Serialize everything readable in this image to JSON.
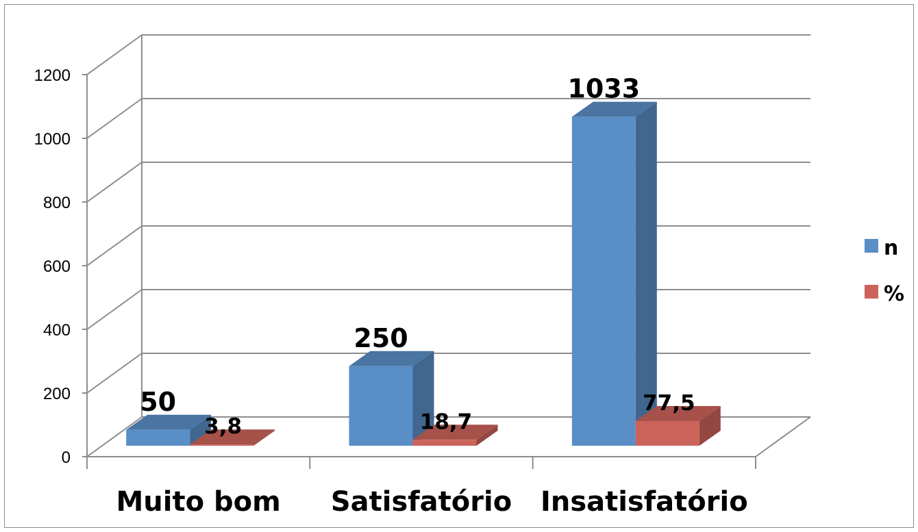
{
  "chart_data": {
    "type": "bar",
    "style": "3d-clustered",
    "categories": [
      "Muito bom",
      "Satisfatório",
      "Insatisfatório"
    ],
    "series": [
      {
        "name": "n",
        "values": [
          50,
          250,
          1033
        ],
        "labels": [
          "50",
          "250",
          "1033"
        ],
        "color": "#5a8ec6"
      },
      {
        "name": "%",
        "values": [
          3.8,
          18.7,
          77.5
        ],
        "labels": [
          "3,8",
          "18,7",
          "77,5"
        ],
        "color": "#cc635b"
      }
    ],
    "ylim": [
      0,
      1200
    ],
    "yticks": [
      "0",
      "200",
      "400",
      "600",
      "800",
      "1000",
      "1200"
    ],
    "grid": true,
    "legend_position": "right",
    "title": "",
    "xlabel": "",
    "ylabel": ""
  }
}
